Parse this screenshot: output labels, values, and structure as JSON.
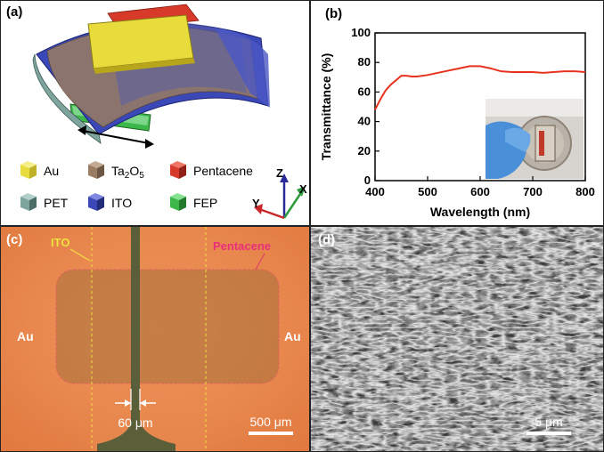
{
  "panels": {
    "a": {
      "label": "(a)",
      "legend": [
        {
          "name": "Au",
          "color": "#e8dc3c"
        },
        {
          "name": "Ta2O5",
          "color": "#9a7c62"
        },
        {
          "name": "Pentacene",
          "color": "#d83a2a"
        },
        {
          "name": "PET",
          "color": "#7ea59d"
        },
        {
          "name": "ITO",
          "color": "#3b48b8"
        },
        {
          "name": "FEP",
          "color": "#3cb84a"
        }
      ],
      "ta2o5_main": "Ta",
      "ta2o5_sub1": "2",
      "ta2o5_mid": "O",
      "ta2o5_sub2": "5",
      "axes": {
        "z": "Z",
        "x": "X",
        "y": "Y"
      }
    },
    "b": {
      "label": "(b)",
      "inset_alt": "photo of flexible device held in gloved hand"
    },
    "c": {
      "label": "(c)",
      "ito_label": "ITO",
      "pentacene_label": "Pentacene",
      "au_left": "Au",
      "au_right": "Au",
      "gap_label": "60 μm",
      "scale_label": "500 μm"
    },
    "d": {
      "label": "(d)",
      "scale_label": "5 μm"
    }
  },
  "chart_data": {
    "type": "line",
    "title": "",
    "xlabel": "Wavelength (nm)",
    "ylabel": "Transmittance (%)",
    "xlim": [
      400,
      800
    ],
    "ylim": [
      0,
      100
    ],
    "xticks": [
      400,
      500,
      600,
      700,
      800
    ],
    "yticks": [
      0,
      20,
      40,
      60,
      80,
      100
    ],
    "line_color": "#e8321e",
    "x": [
      400,
      410,
      420,
      430,
      440,
      450,
      460,
      470,
      480,
      500,
      520,
      540,
      560,
      580,
      600,
      620,
      640,
      660,
      680,
      700,
      720,
      740,
      760,
      780,
      800
    ],
    "y": [
      48,
      55,
      61,
      65,
      68,
      71,
      71,
      70.5,
      70.5,
      71.5,
      73,
      74.5,
      76,
      77.5,
      77.5,
      76,
      74,
      73.5,
      73.5,
      73.5,
      73,
      73.5,
      74,
      74,
      73.5
    ]
  }
}
